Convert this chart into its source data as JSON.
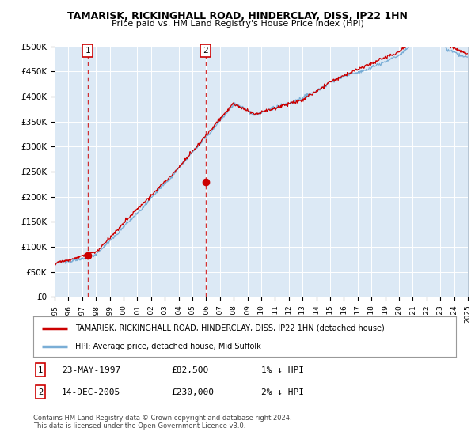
{
  "title": "TAMARISK, RICKINGHALL ROAD, HINDERCLAY, DISS, IP22 1HN",
  "subtitle": "Price paid vs. HM Land Registry's House Price Index (HPI)",
  "background_color": "#ffffff",
  "plot_bg_color": "#dce9f5",
  "hpi_color": "#7aaed6",
  "price_color": "#cc0000",
  "ylim": [
    0,
    500000
  ],
  "yticks": [
    0,
    50000,
    100000,
    150000,
    200000,
    250000,
    300000,
    350000,
    400000,
    450000,
    500000
  ],
  "ytick_labels": [
    "£0",
    "£50K",
    "£100K",
    "£150K",
    "£200K",
    "£250K",
    "£300K",
    "£350K",
    "£400K",
    "£450K",
    "£500K"
  ],
  "sale1": {
    "year": 1997.39,
    "price": 82500,
    "label": "1",
    "date": "23-MAY-1997",
    "hpi_diff": "1% ↓ HPI"
  },
  "sale2": {
    "year": 2005.95,
    "price": 230000,
    "label": "2",
    "date": "14-DEC-2005",
    "hpi_diff": "2% ↓ HPI"
  },
  "legend_line1": "TAMARISK, RICKINGHALL ROAD, HINDERCLAY, DISS, IP22 1HN (detached house)",
  "legend_line2": "HPI: Average price, detached house, Mid Suffolk",
  "footnote": "Contains HM Land Registry data © Crown copyright and database right 2024.\nThis data is licensed under the Open Government Licence v3.0.",
  "xmin": 1995,
  "xmax": 2025
}
